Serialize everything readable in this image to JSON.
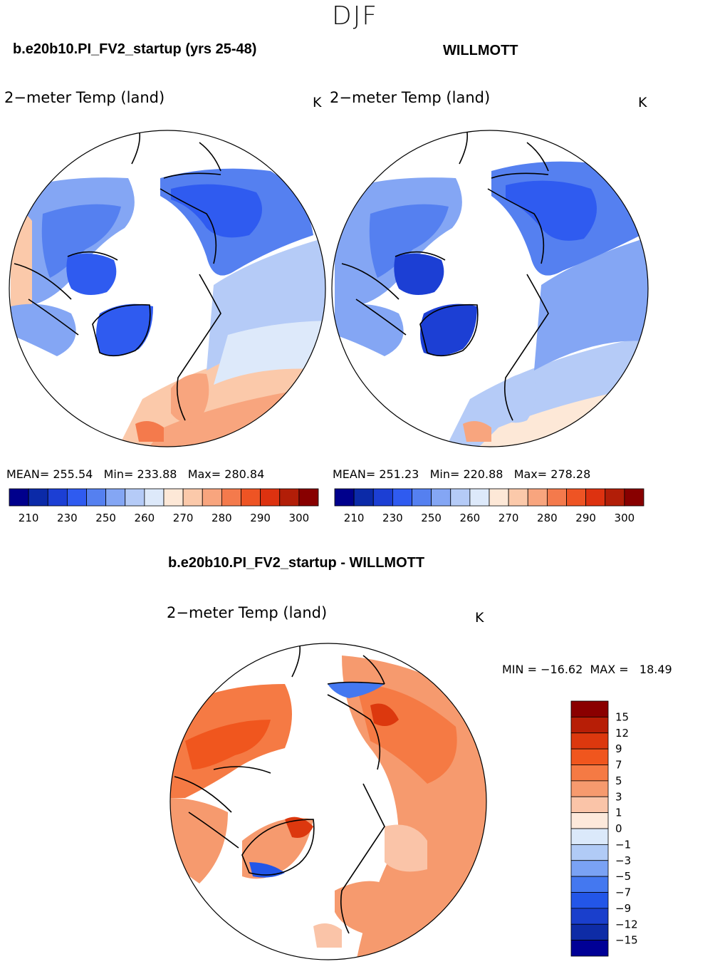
{
  "season": "DJF",
  "panels": {
    "model": {
      "title": "b.e20b10.PI_FV2_startup (yrs 25-48)",
      "variable": "2−meter Temp (land)",
      "unit": "K",
      "stats": "MEAN= 255.54   Min= 233.88   Max= 280.84"
    },
    "obs": {
      "title": "WILLMOTT",
      "variable": "2−meter Temp (land)",
      "unit": "K",
      "stats": "MEAN= 251.23   Min= 220.88   Max= 278.28"
    },
    "diff": {
      "title": "b.e20b10.PI_FV2_startup - WILLMOTT",
      "variable": "2−meter Temp (land)",
      "unit": "K",
      "stats": "MIN = −16.62  MAX =   18.49"
    }
  },
  "temp_colorbar": {
    "colors": [
      "#00008c",
      "#0b2aa8",
      "#1c3fd4",
      "#2f5bf0",
      "#5580f0",
      "#84a6f4",
      "#b5cbf7",
      "#dde9fa",
      "#fde8d7",
      "#fbc9aa",
      "#f8a57e",
      "#f47a4c",
      "#ee5424",
      "#dd3210",
      "#b21e08",
      "#880000"
    ],
    "tick_labels": [
      "210",
      "230",
      "250",
      "260",
      "270",
      "280",
      "290",
      "300"
    ]
  },
  "diff_colorbar": {
    "colors": [
      "#000096",
      "#0e2ca6",
      "#1a3fcc",
      "#2356e8",
      "#4478f0",
      "#7aa2f4",
      "#b1cbf6",
      "#dbe9fa",
      "#fde9db",
      "#fac4a8",
      "#f69a6e",
      "#f57a44",
      "#f0561e",
      "#dc380e",
      "#b71e06",
      "#8a0000"
    ],
    "tick_labels": [
      "15",
      "12",
      "9",
      "7",
      "5",
      "3",
      "1",
      "0",
      "−1",
      "−3",
      "−5",
      "−7",
      "−9",
      "−12",
      "−15"
    ]
  }
}
